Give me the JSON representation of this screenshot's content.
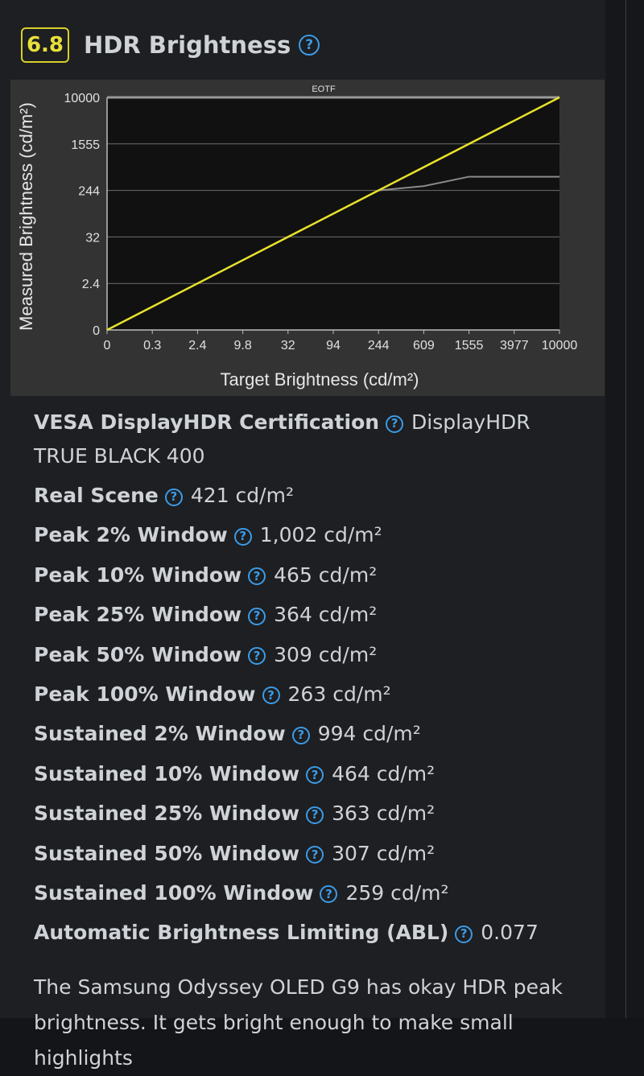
{
  "header": {
    "score": "6.8",
    "title": "HDR Brightness",
    "help_glyph": "?"
  },
  "chart_data": {
    "type": "line",
    "title": "EOTF",
    "xlabel": "Target Brightness (cd/m²)",
    "ylabel": "Measured Brightness (cd/m²)",
    "x_ticks": [
      "0",
      "0.3",
      "2.4",
      "9.8",
      "32",
      "94",
      "244",
      "609",
      "1555",
      "3977",
      "10000"
    ],
    "y_ticks": [
      "0",
      "2.4",
      "32",
      "244",
      "1555",
      "10000"
    ],
    "series": [
      {
        "color": "#e6e22c",
        "x": [
          "0",
          "10000"
        ],
        "y": [
          "0",
          "10000"
        ]
      },
      {
        "color": "#8a8a8a",
        "x": [
          "0",
          "244",
          "609",
          "1555",
          "10000"
        ],
        "y": [
          "0",
          "244",
          "290",
          "421",
          "421"
        ]
      }
    ],
    "colors": {
      "target": "#e6e22c",
      "measured": "#8a8a8a"
    }
  },
  "specs": [
    {
      "label": "VESA DisplayHDR Certification",
      "value": "DisplayHDR TRUE BLACK 400"
    },
    {
      "label": "Real Scene",
      "value": "421 cd/m²"
    },
    {
      "label": "Peak 2% Window",
      "value": "1,002 cd/m²"
    },
    {
      "label": "Peak 10% Window",
      "value": "465 cd/m²"
    },
    {
      "label": "Peak 25% Window",
      "value": "364 cd/m²"
    },
    {
      "label": "Peak 50% Window",
      "value": "309 cd/m²"
    },
    {
      "label": "Peak 100% Window",
      "value": "263 cd/m²"
    },
    {
      "label": "Sustained 2% Window",
      "value": "994 cd/m²"
    },
    {
      "label": "Sustained 10% Window",
      "value": "464 cd/m²"
    },
    {
      "label": "Sustained 25% Window",
      "value": "363 cd/m²"
    },
    {
      "label": "Sustained 50% Window",
      "value": "307 cd/m²"
    },
    {
      "label": "Sustained 100% Window",
      "value": "259 cd/m²"
    },
    {
      "label": "Automatic Brightness Limiting (ABL)",
      "value": "0.077"
    }
  ],
  "description": "The Samsung Odyssey OLED G9 has okay HDR peak brightness. It gets bright enough to make small highlights"
}
